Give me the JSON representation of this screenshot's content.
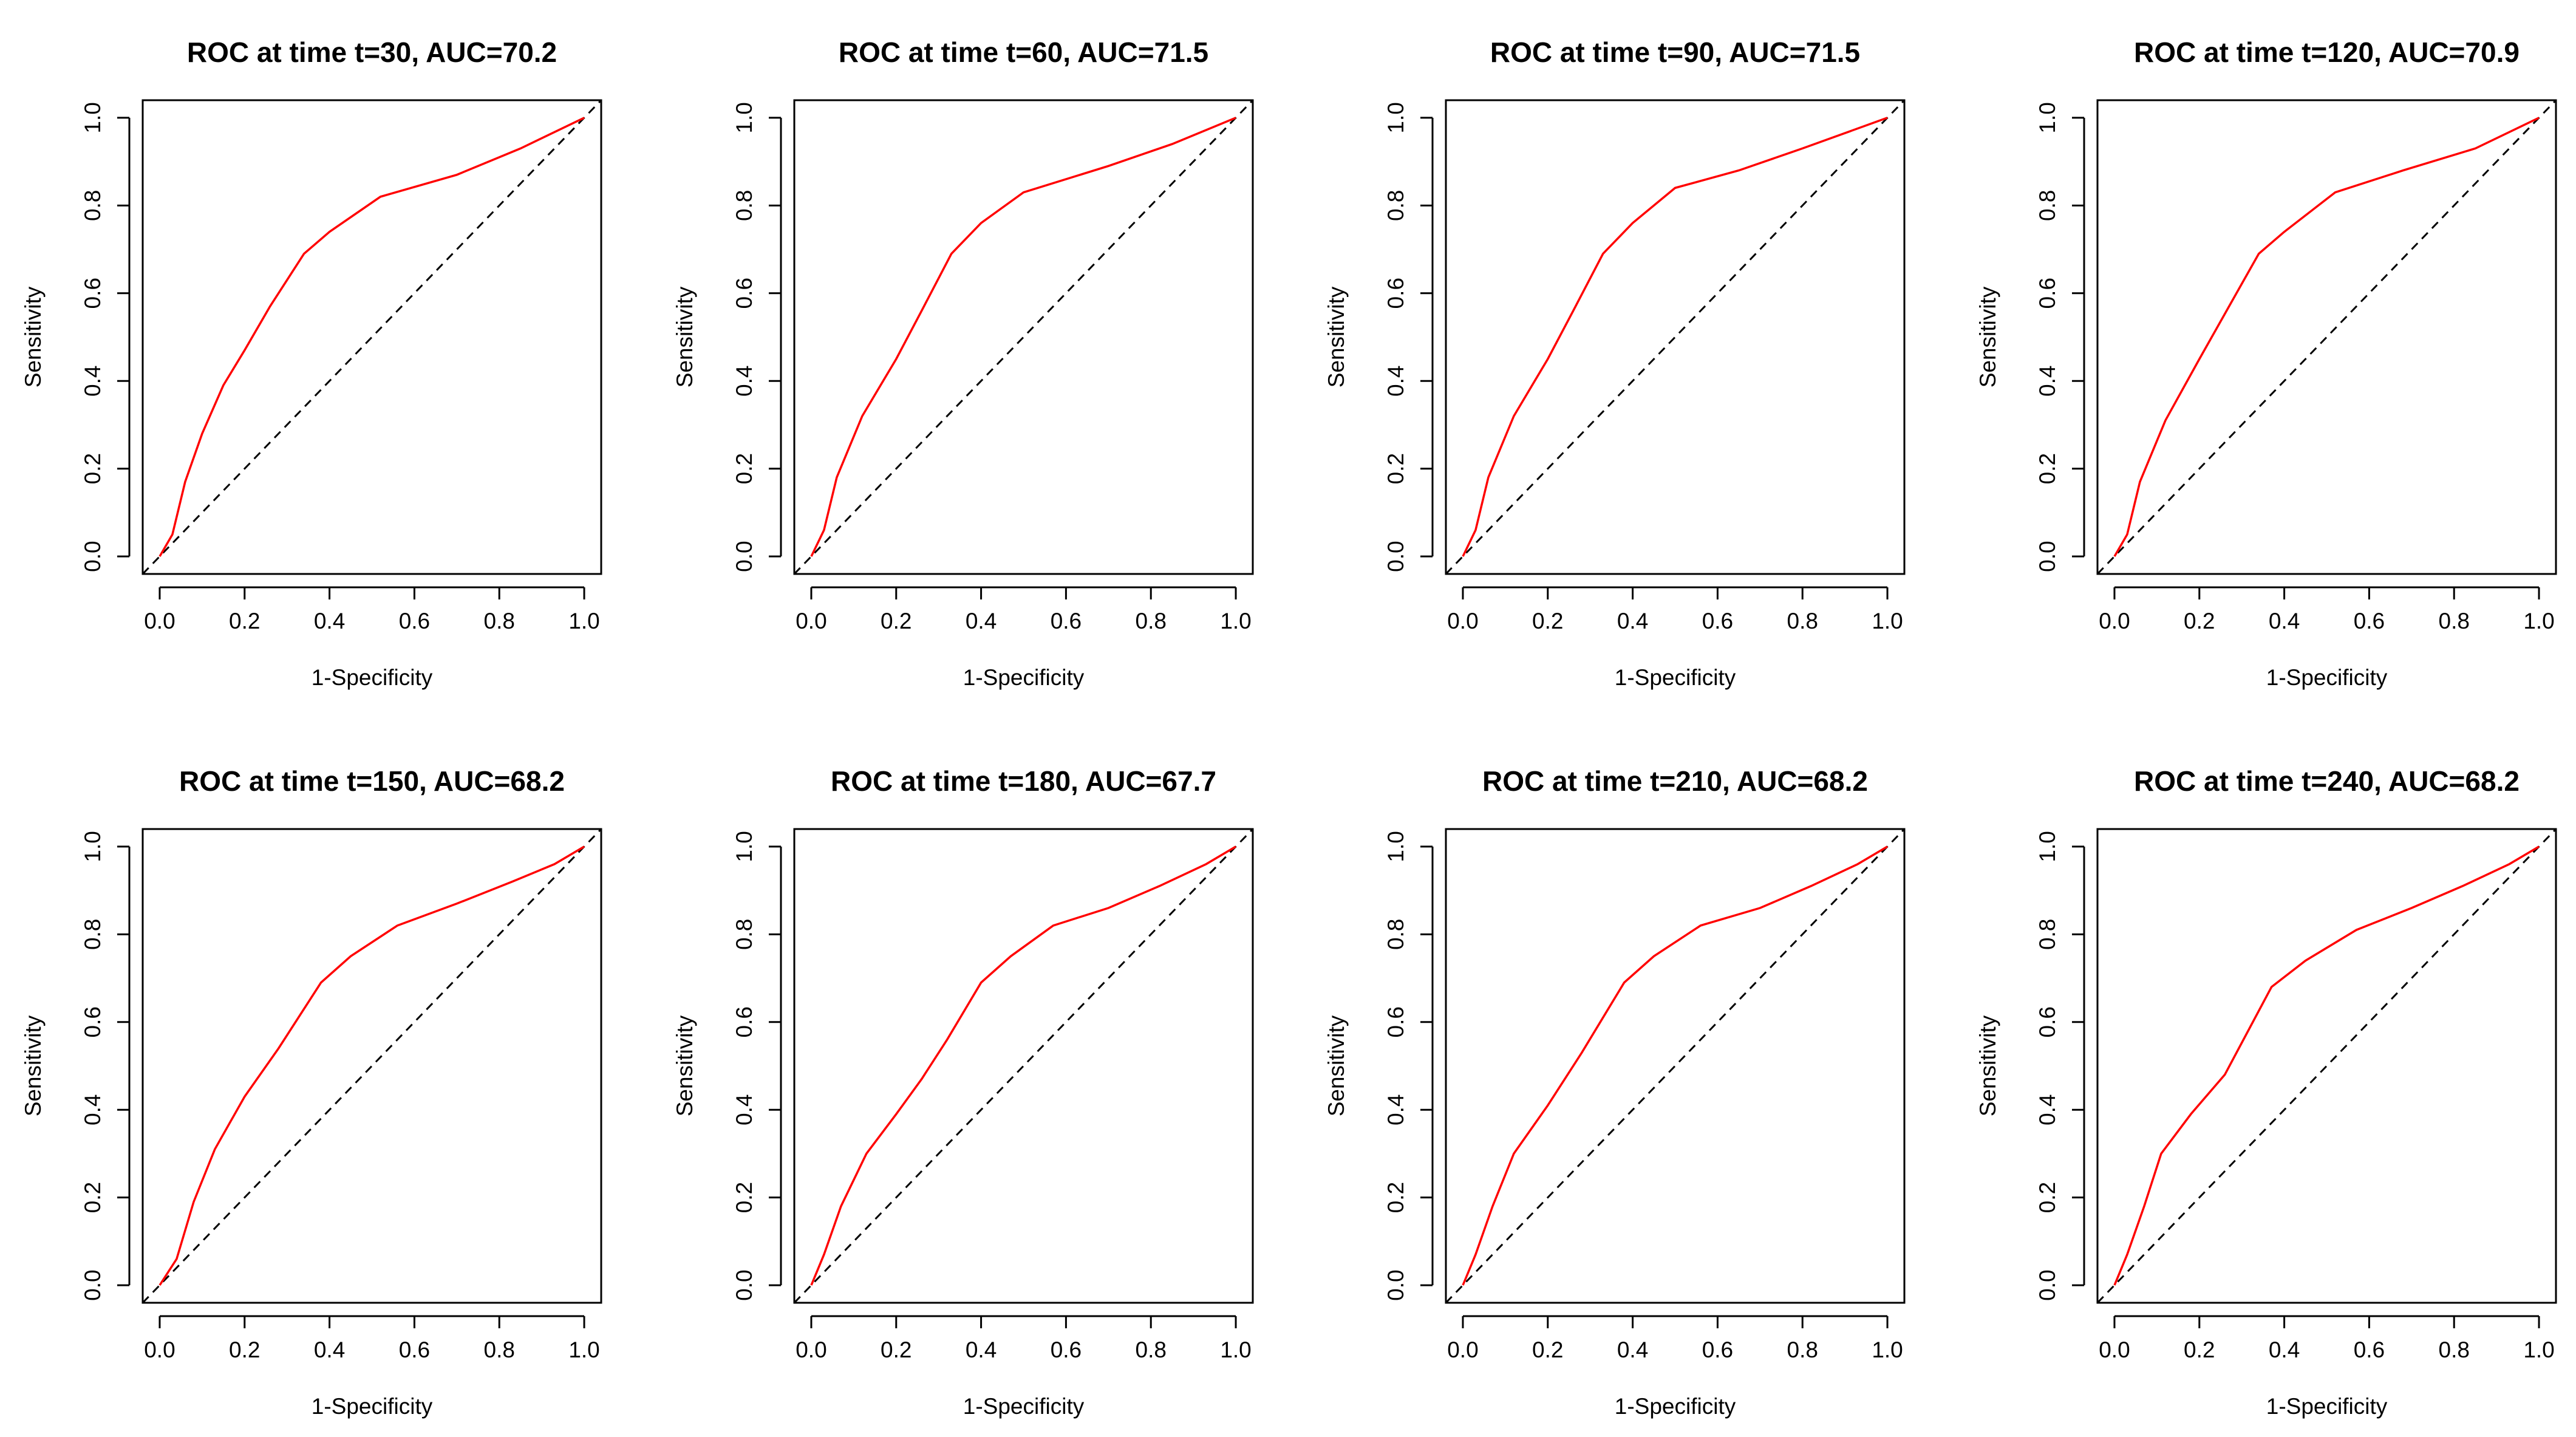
{
  "colors": {
    "roc_curve": "#ff0000",
    "reference_line": "#000000",
    "frame": "#000000",
    "background": "#ffffff"
  },
  "chart_data": [
    {
      "type": "line",
      "title": "ROC at time t=30, AUC=70.2",
      "xlabel": "1-Specificity",
      "ylabel": "Sensitivity",
      "xlim": [
        0,
        1
      ],
      "ylim": [
        0,
        1
      ],
      "xticks": [
        "0.0",
        "0.2",
        "0.4",
        "0.6",
        "0.8",
        "1.0"
      ],
      "yticks": [
        "0.0",
        "0.2",
        "0.4",
        "0.6",
        "0.8",
        "1.0"
      ],
      "grid": false,
      "diagonal": true,
      "series": [
        {
          "x": [
            0,
            0.03,
            0.06,
            0.1,
            0.15,
            0.2,
            0.26,
            0.34,
            0.4,
            0.52,
            0.7,
            0.85,
            1.0
          ],
          "y": [
            0,
            0.05,
            0.17,
            0.28,
            0.39,
            0.47,
            0.57,
            0.69,
            0.74,
            0.82,
            0.87,
            0.93,
            1.0
          ]
        }
      ]
    },
    {
      "type": "line",
      "title": "ROC at time t=60, AUC=71.5",
      "xlabel": "1-Specificity",
      "ylabel": "Sensitivity",
      "xlim": [
        0,
        1
      ],
      "ylim": [
        0,
        1
      ],
      "xticks": [
        "0.0",
        "0.2",
        "0.4",
        "0.6",
        "0.8",
        "1.0"
      ],
      "yticks": [
        "0.0",
        "0.2",
        "0.4",
        "0.6",
        "0.8",
        "1.0"
      ],
      "grid": false,
      "diagonal": true,
      "series": [
        {
          "x": [
            0,
            0.03,
            0.06,
            0.12,
            0.2,
            0.26,
            0.33,
            0.4,
            0.5,
            0.7,
            0.85,
            1.0
          ],
          "y": [
            0,
            0.06,
            0.18,
            0.32,
            0.45,
            0.56,
            0.69,
            0.76,
            0.83,
            0.89,
            0.94,
            1.0
          ]
        }
      ]
    },
    {
      "type": "line",
      "title": "ROC at time t=90, AUC=71.5",
      "xlabel": "1-Specificity",
      "ylabel": "Sensitivity",
      "xlim": [
        0,
        1
      ],
      "ylim": [
        0,
        1
      ],
      "xticks": [
        "0.0",
        "0.2",
        "0.4",
        "0.6",
        "0.8",
        "1.0"
      ],
      "yticks": [
        "0.0",
        "0.2",
        "0.4",
        "0.6",
        "0.8",
        "1.0"
      ],
      "grid": false,
      "diagonal": true,
      "series": [
        {
          "x": [
            0,
            0.03,
            0.06,
            0.12,
            0.2,
            0.26,
            0.33,
            0.4,
            0.5,
            0.65,
            0.8,
            1.0
          ],
          "y": [
            0,
            0.06,
            0.18,
            0.32,
            0.45,
            0.56,
            0.69,
            0.76,
            0.84,
            0.88,
            0.93,
            1.0
          ]
        }
      ]
    },
    {
      "type": "line",
      "title": "ROC at time t=120, AUC=70.9",
      "xlabel": "1-Specificity",
      "ylabel": "Sensitivity",
      "xlim": [
        0,
        1
      ],
      "ylim": [
        0,
        1
      ],
      "xticks": [
        "0.0",
        "0.2",
        "0.4",
        "0.6",
        "0.8",
        "1.0"
      ],
      "yticks": [
        "0.0",
        "0.2",
        "0.4",
        "0.6",
        "0.8",
        "1.0"
      ],
      "grid": false,
      "diagonal": true,
      "series": [
        {
          "x": [
            0,
            0.03,
            0.06,
            0.12,
            0.2,
            0.27,
            0.34,
            0.4,
            0.52,
            0.68,
            0.85,
            1.0
          ],
          "y": [
            0,
            0.05,
            0.17,
            0.31,
            0.45,
            0.57,
            0.69,
            0.74,
            0.83,
            0.88,
            0.93,
            1.0
          ]
        }
      ]
    },
    {
      "type": "line",
      "title": "ROC at time t=150, AUC=68.2",
      "xlabel": "1-Specificity",
      "ylabel": "Sensitivity",
      "xlim": [
        0,
        1
      ],
      "ylim": [
        0,
        1
      ],
      "xticks": [
        "0.0",
        "0.2",
        "0.4",
        "0.6",
        "0.8",
        "1.0"
      ],
      "yticks": [
        "0.0",
        "0.2",
        "0.4",
        "0.6",
        "0.8",
        "1.0"
      ],
      "grid": false,
      "diagonal": true,
      "series": [
        {
          "x": [
            0,
            0.04,
            0.08,
            0.13,
            0.2,
            0.28,
            0.38,
            0.45,
            0.56,
            0.7,
            0.83,
            0.93,
            1.0
          ],
          "y": [
            0,
            0.06,
            0.19,
            0.31,
            0.43,
            0.54,
            0.69,
            0.75,
            0.82,
            0.87,
            0.92,
            0.96,
            1.0
          ]
        }
      ]
    },
    {
      "type": "line",
      "title": "ROC at time t=180, AUC=67.7",
      "xlabel": "1-Specificity",
      "ylabel": "Sensitivity",
      "xlim": [
        0,
        1
      ],
      "ylim": [
        0,
        1
      ],
      "xticks": [
        "0.0",
        "0.2",
        "0.4",
        "0.6",
        "0.8",
        "1.0"
      ],
      "yticks": [
        "0.0",
        "0.2",
        "0.4",
        "0.6",
        "0.8",
        "1.0"
      ],
      "grid": false,
      "diagonal": true,
      "series": [
        {
          "x": [
            0,
            0.03,
            0.07,
            0.13,
            0.2,
            0.26,
            0.32,
            0.4,
            0.47,
            0.57,
            0.7,
            0.82,
            0.93,
            1.0
          ],
          "y": [
            0,
            0.07,
            0.18,
            0.3,
            0.39,
            0.47,
            0.56,
            0.69,
            0.75,
            0.82,
            0.86,
            0.91,
            0.96,
            1.0
          ]
        }
      ]
    },
    {
      "type": "line",
      "title": "ROC at time t=210, AUC=68.2",
      "xlabel": "1-Specificity",
      "ylabel": "Sensitivity",
      "xlim": [
        0,
        1
      ],
      "ylim": [
        0,
        1
      ],
      "xticks": [
        "0.0",
        "0.2",
        "0.4",
        "0.6",
        "0.8",
        "1.0"
      ],
      "yticks": [
        "0.0",
        "0.2",
        "0.4",
        "0.6",
        "0.8",
        "1.0"
      ],
      "grid": false,
      "diagonal": true,
      "series": [
        {
          "x": [
            0,
            0.03,
            0.07,
            0.12,
            0.2,
            0.28,
            0.38,
            0.45,
            0.56,
            0.7,
            0.82,
            0.93,
            1.0
          ],
          "y": [
            0,
            0.07,
            0.18,
            0.3,
            0.41,
            0.53,
            0.69,
            0.75,
            0.82,
            0.86,
            0.91,
            0.96,
            1.0
          ]
        }
      ]
    },
    {
      "type": "line",
      "title": "ROC at time t=240, AUC=68.2",
      "xlabel": "1-Specificity",
      "ylabel": "Sensitivity",
      "xlim": [
        0,
        1
      ],
      "ylim": [
        0,
        1
      ],
      "xticks": [
        "0.0",
        "0.2",
        "0.4",
        "0.6",
        "0.8",
        "1.0"
      ],
      "yticks": [
        "0.0",
        "0.2",
        "0.4",
        "0.6",
        "0.8",
        "1.0"
      ],
      "grid": false,
      "diagonal": true,
      "series": [
        {
          "x": [
            0,
            0.03,
            0.07,
            0.11,
            0.18,
            0.26,
            0.37,
            0.45,
            0.57,
            0.7,
            0.82,
            0.93,
            1.0
          ],
          "y": [
            0,
            0.07,
            0.18,
            0.3,
            0.39,
            0.48,
            0.68,
            0.74,
            0.81,
            0.86,
            0.91,
            0.96,
            1.0
          ]
        }
      ]
    }
  ]
}
